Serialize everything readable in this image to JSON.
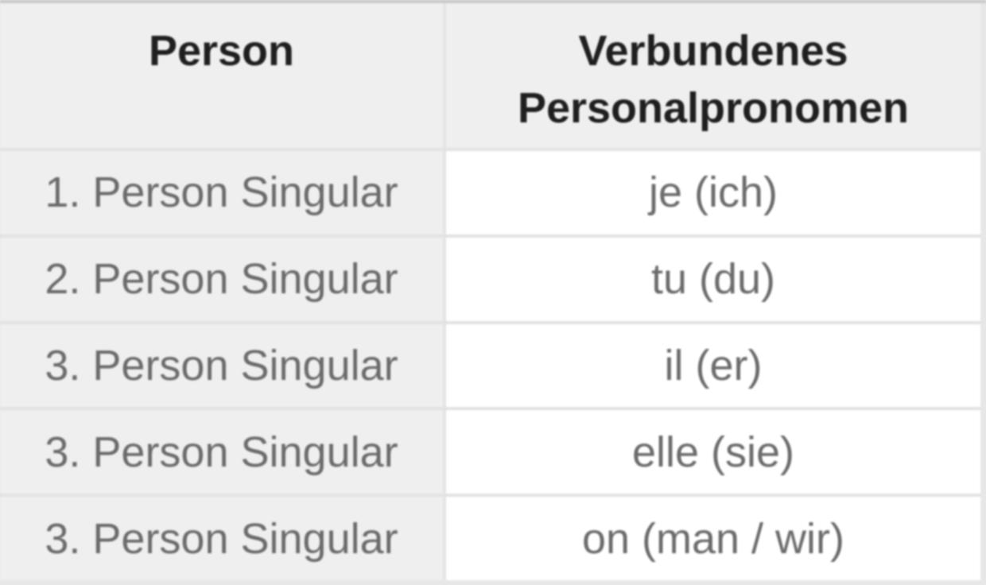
{
  "table": {
    "headers": {
      "person": "Person",
      "pronoun": "Verbundenes Personalpronomen"
    },
    "rows": [
      {
        "person": "1. Person Singular",
        "pronoun": "je (ich)"
      },
      {
        "person": "2. Person Singular",
        "pronoun": "tu (du)"
      },
      {
        "person": "3. Person Singular",
        "pronoun": "il (er)"
      },
      {
        "person": "3. Person Singular",
        "pronoun": "elle (sie)"
      },
      {
        "person": "3. Person Singular",
        "pronoun": "on (man / wir)"
      }
    ],
    "colors": {
      "header_bg": "#efefef",
      "left_column_bg": "#efefef",
      "cell_bg": "#ffffff",
      "grid_line": "#e2e2e2",
      "outer_top_border": "#c9c9c9",
      "header_text": "#1f1f1f",
      "body_text": "#6b6b6b"
    }
  }
}
